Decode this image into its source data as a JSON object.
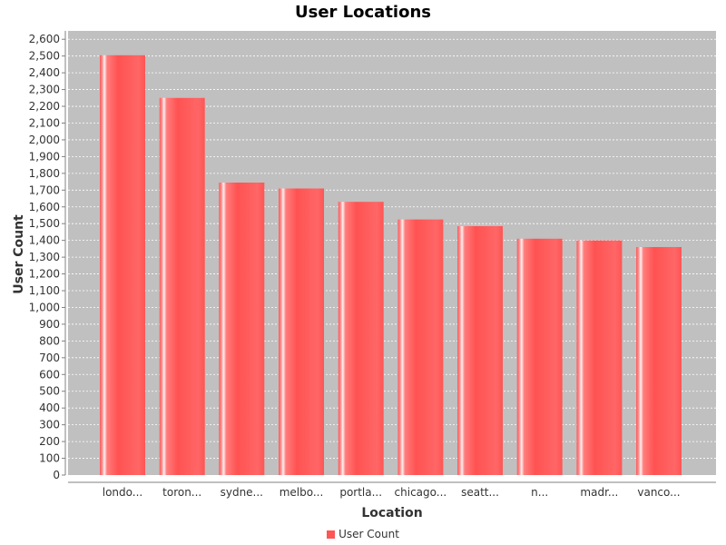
{
  "chart_data": {
    "type": "bar",
    "title": "User Locations",
    "xlabel": "Location",
    "ylabel": "User Count",
    "categories": [
      "londo...",
      "toron...",
      "sydne...",
      "melbo...",
      "portla...",
      "chicago...",
      "seatt...",
      "n...",
      "madr...",
      "vanco..."
    ],
    "series": [
      {
        "name": "User Count",
        "values": [
          2505,
          2250,
          1745,
          1710,
          1630,
          1525,
          1485,
          1410,
          1400,
          1360
        ]
      }
    ],
    "ylim": [
      0,
      2650
    ],
    "ytick_step": 100,
    "grid": true,
    "legend_position": "bottom"
  },
  "colors": {
    "bar": "#ff5555",
    "bar_highlight": "#ffe8e8",
    "plot_background": "#c0c0c0",
    "gridline": "#ffffff"
  }
}
